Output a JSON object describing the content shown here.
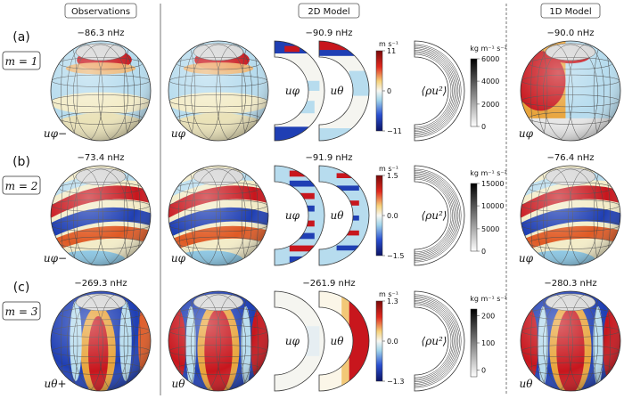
{
  "headers": {
    "observations": "Observations",
    "model2d": "2D Model",
    "model1d": "1D Model"
  },
  "rows": [
    {
      "panel": "(a)",
      "m_label": "m = 1",
      "obs_freq": "−86.3 nHz",
      "model2d_freq": "−90.9 nHz",
      "model1d_freq": "−90.0 nHz",
      "obs_var": "uφ−",
      "sphere2d_var": "uφ",
      "sphere1d_var": "uφ",
      "slice_a_var": "uφ",
      "slice_b_var": "uθ",
      "flux_var": "⟨ρu²⟩",
      "vel_unit": "m s⁻¹",
      "vel_ticks": [
        "11",
        "0",
        "−11"
      ],
      "flux_unit": "kg m⁻¹ s⁻²",
      "flux_ticks": [
        "6000",
        "4000",
        "2000",
        "0"
      ]
    },
    {
      "panel": "(b)",
      "m_label": "m = 2",
      "obs_freq": "−73.4 nHz",
      "model2d_freq": "−91.9 nHz",
      "model1d_freq": "−76.4 nHz",
      "obs_var": "uφ−",
      "sphere2d_var": "uφ",
      "sphere1d_var": "uφ",
      "slice_a_var": "uφ",
      "slice_b_var": "uθ",
      "flux_var": "⟨ρu²⟩",
      "vel_unit": "m s⁻¹",
      "vel_ticks": [
        "1.5",
        "0.0",
        "−1.5"
      ],
      "flux_unit": "kg m⁻¹ s⁻²",
      "flux_ticks": [
        "15000",
        "10000",
        "5000",
        "0"
      ]
    },
    {
      "panel": "(c)",
      "m_label": "m = 3",
      "obs_freq": "−269.3 nHz",
      "model2d_freq": "−261.9 nHz",
      "model1d_freq": "−280.3 nHz",
      "obs_var": "uθ+",
      "sphere2d_var": "uθ",
      "sphere1d_var": "uθ",
      "slice_a_var": "uφ",
      "slice_b_var": "uθ",
      "flux_var": "⟨ρu²⟩",
      "vel_unit": "m s⁻¹",
      "vel_ticks": [
        "1.3",
        "0.0",
        "−1.3"
      ],
      "flux_unit": "kg m⁻¹ s⁻²",
      "flux_ticks": [
        "200",
        "100",
        "0"
      ]
    }
  ],
  "colors": {
    "red": "#c8161d",
    "blue": "#1f3fb4",
    "light_blue": "#b7dcee",
    "cream": "#f3ecc8",
    "gray_cap": "#d8d8d8"
  }
}
